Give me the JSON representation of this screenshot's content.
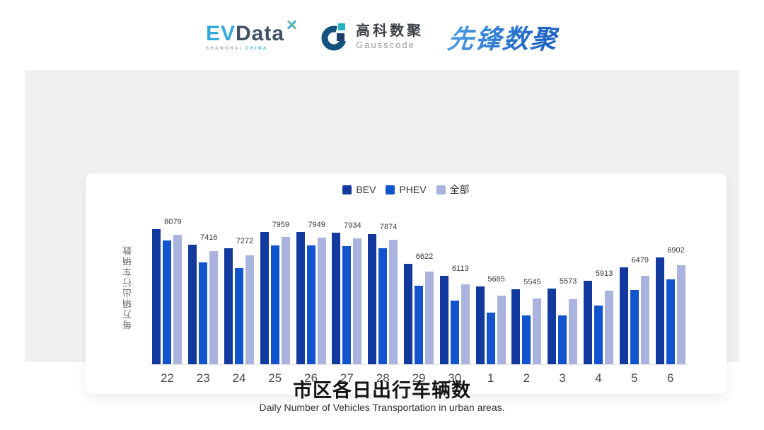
{
  "header": {
    "logos": {
      "evdata": {
        "ev": "EV",
        "data": "Data",
        "tagline_left": "SHANGHAI",
        "tagline_right": "CHINA"
      },
      "gausscode": {
        "name_cn": "高科数聚",
        "name_en": "Gausscode"
      },
      "xianfeng": {
        "text": "先锋数聚"
      }
    }
  },
  "chart_data": {
    "type": "bar",
    "title": "市区各日出行车辆数",
    "subtitle": "Daily Number of Vehicles Transportation in urban areas.",
    "ylabel": "每万辆出行车辆数",
    "xlabel": "",
    "categories": [
      "22",
      "23",
      "24",
      "25",
      "26",
      "27",
      "28",
      "29",
      "30",
      "1",
      "2",
      "3",
      "4",
      "5",
      "6"
    ],
    "series": [
      {
        "key": "bev",
        "name": "BEV",
        "color": "#12399e",
        "values": [
          8079,
          7416,
          7272,
          7959,
          7949,
          7934,
          7874,
          6622,
          6113,
          5685,
          5545,
          5573,
          5913,
          6479,
          6902
        ]
      },
      {
        "key": "phev",
        "name": "PHEV",
        "color": "#1254cd",
        "values": [
          7600,
          6670,
          6440,
          7390,
          7380,
          7350,
          7280,
          5710,
          5070,
          4580,
          4440,
          4440,
          4880,
          5510,
          5980
        ]
      },
      {
        "key": "all",
        "name": "全部",
        "color": "#aab3de",
        "values": [
          7850,
          7160,
          6990,
          7740,
          7730,
          7690,
          7640,
          6280,
          5750,
          5280,
          5150,
          5140,
          5490,
          6120,
          6560
        ]
      }
    ],
    "bar_labels": [
      8079,
      7416,
      7272,
      7959,
      7949,
      7934,
      7874,
      6622,
      6113,
      5685,
      5545,
      5573,
      5913,
      6479,
      6902
    ],
    "labels_shown_for": "BEV",
    "ylim": [
      2400,
      9000
    ],
    "grid": false,
    "legend_position": "top"
  },
  "footer": {
    "title": "市区各日出行车辆数",
    "subtitle": "Daily Number of Vehicles Transportation in urban areas."
  }
}
